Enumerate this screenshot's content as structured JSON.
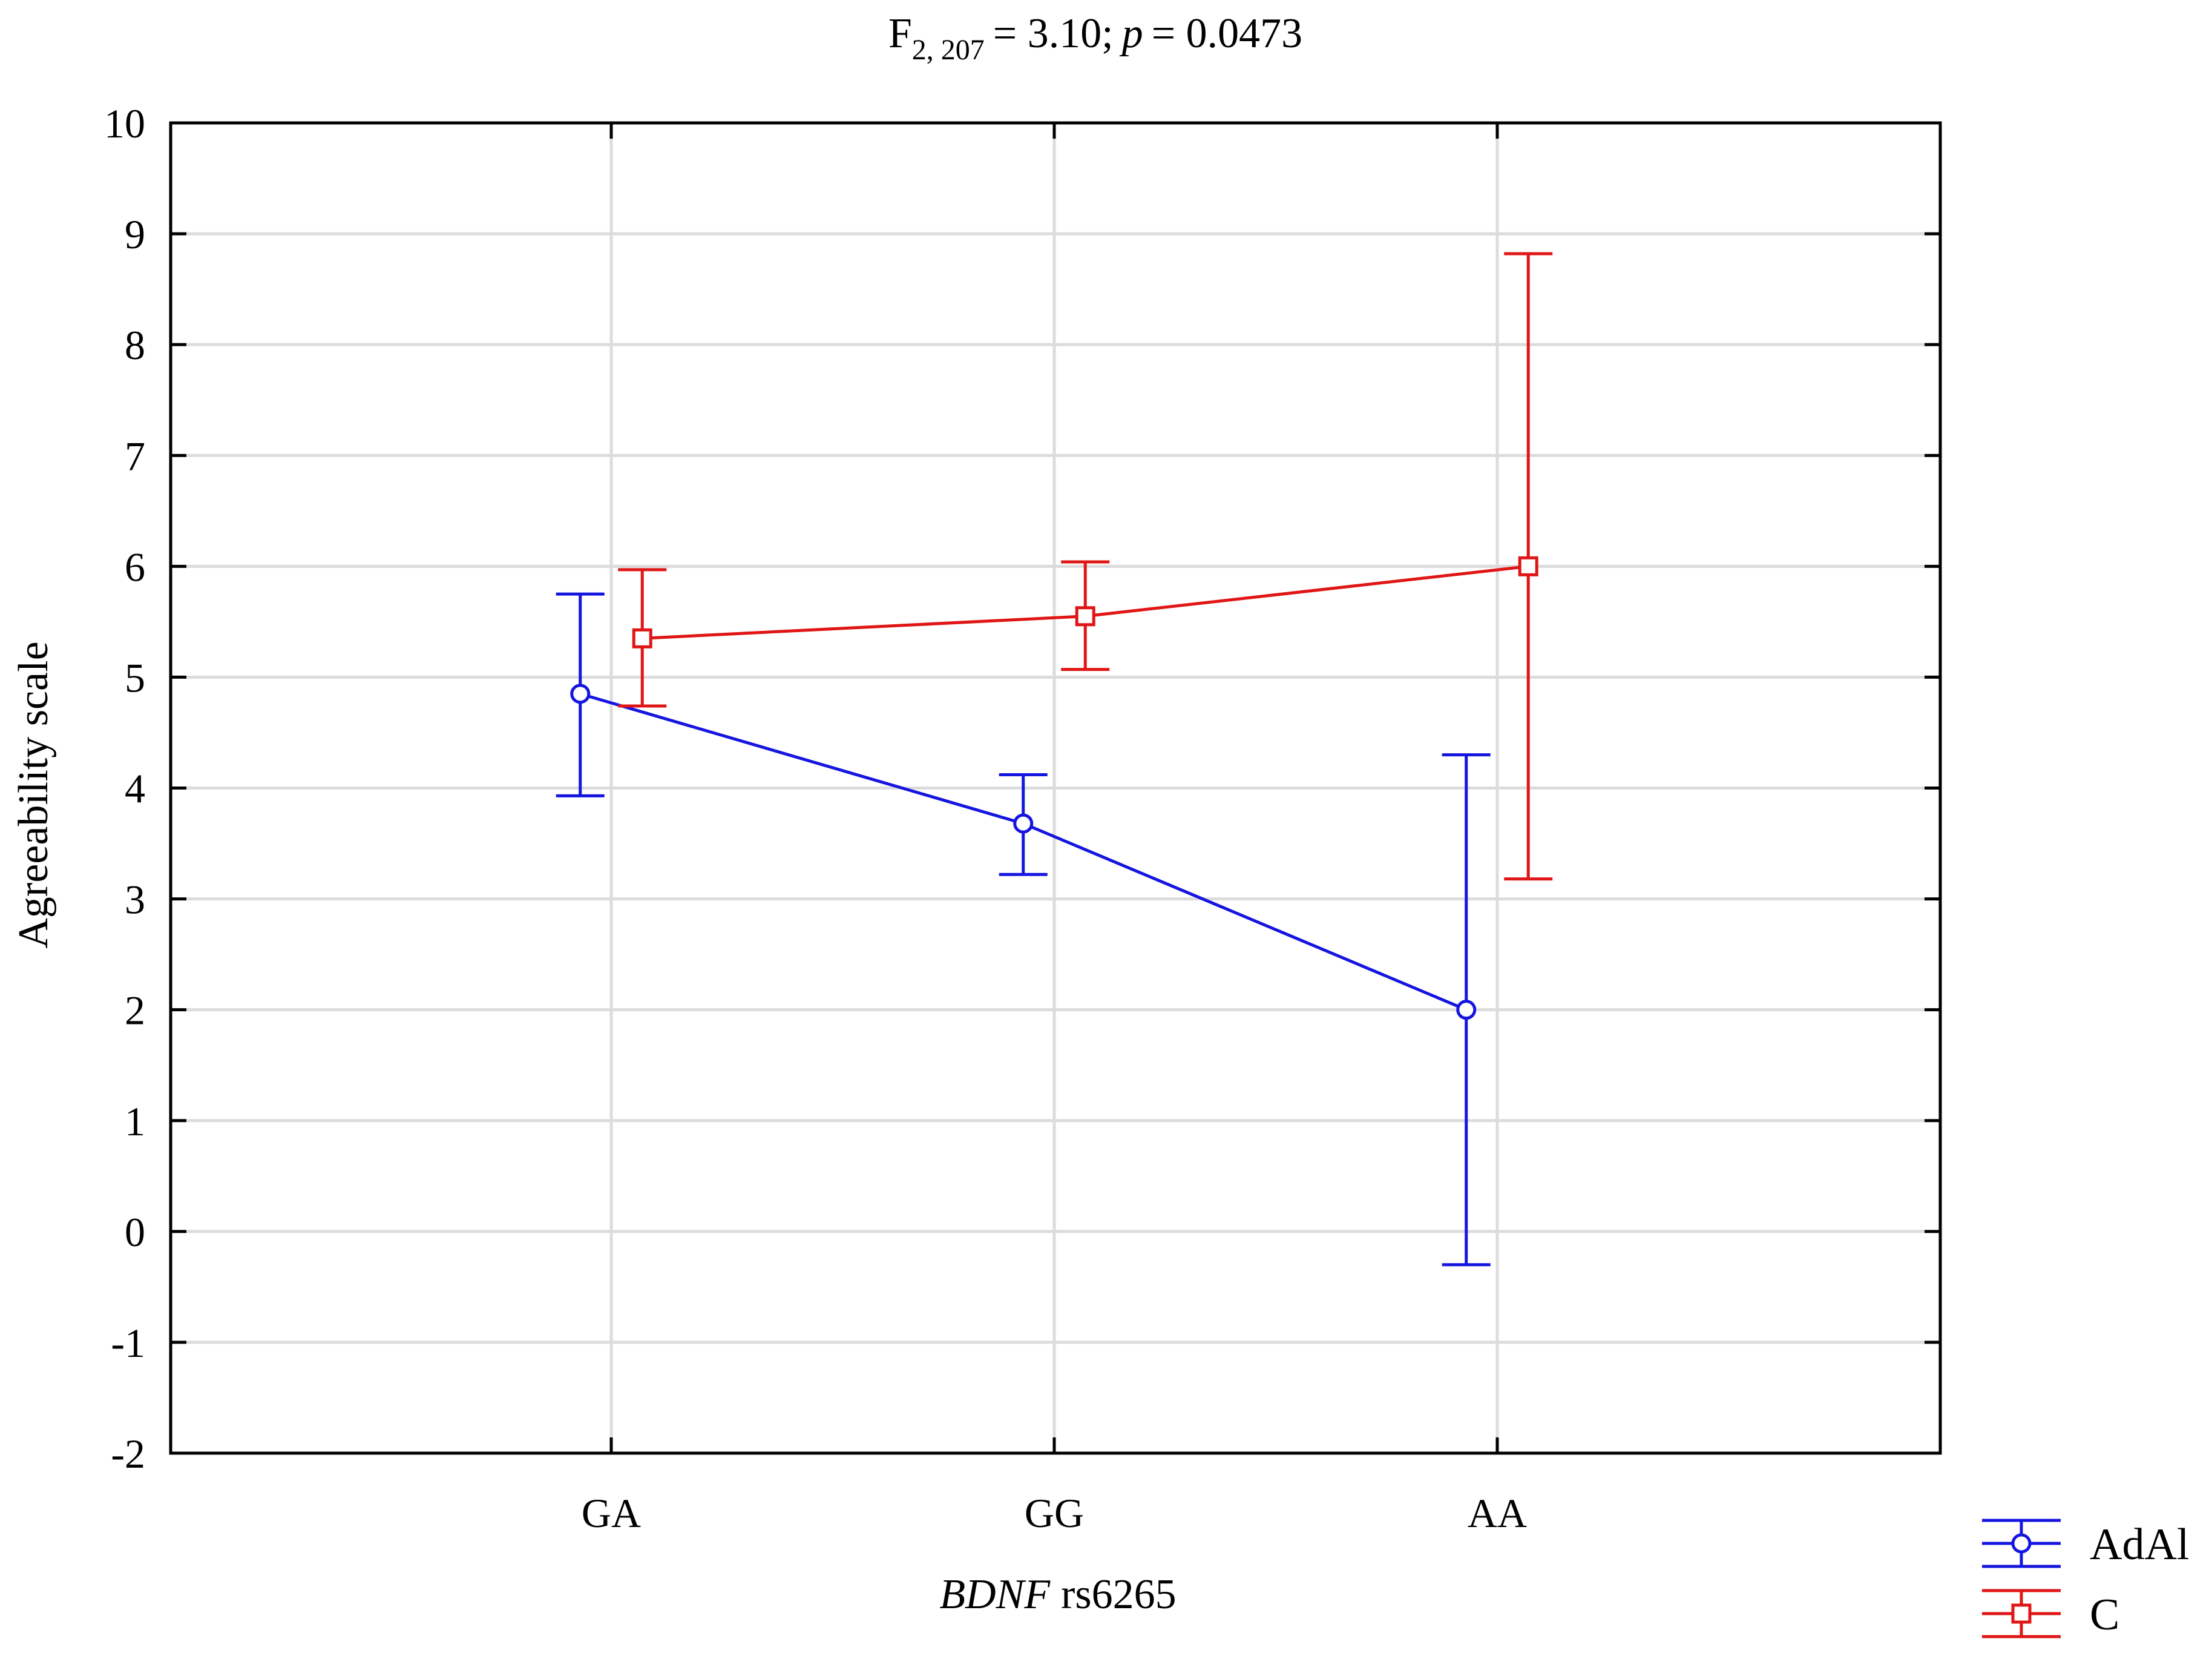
{
  "chart_data": {
    "type": "line",
    "title": {
      "stat_label": "F",
      "df": "2, 207",
      "stat_value": "= 3.10;",
      "p_label": "p",
      "p_value": "= 0.0473"
    },
    "xlabel": {
      "italic": "BDNF",
      "rest": "rs6265"
    },
    "ylabel": "Agreeability scale",
    "categories": [
      "GA",
      "GG",
      "AA"
    ],
    "ylim": [
      -2,
      10
    ],
    "yticks": [
      -2,
      -1,
      0,
      1,
      2,
      3,
      4,
      5,
      6,
      7,
      8,
      9,
      10
    ],
    "ytick_labels": [
      "-2",
      "-1",
      "0",
      "1",
      "2",
      "3",
      "4",
      "5",
      "6",
      "7",
      "8",
      "9",
      "10"
    ],
    "grid": true,
    "legend_position": "bottom-right outside",
    "series": [
      {
        "name": "AdAl",
        "color": "#1515e0",
        "marker": "circle",
        "offset": -0.07,
        "values": [
          4.85,
          3.68,
          2.0
        ],
        "lower": [
          3.93,
          3.22,
          -0.3
        ],
        "upper": [
          5.75,
          4.12,
          4.3
        ]
      },
      {
        "name": "C",
        "color": "#e01515",
        "marker": "square",
        "offset": 0.07,
        "values": [
          5.35,
          5.55,
          6.0
        ],
        "lower": [
          4.74,
          5.07,
          3.18
        ],
        "upper": [
          5.97,
          6.04,
          8.82
        ]
      }
    ]
  }
}
